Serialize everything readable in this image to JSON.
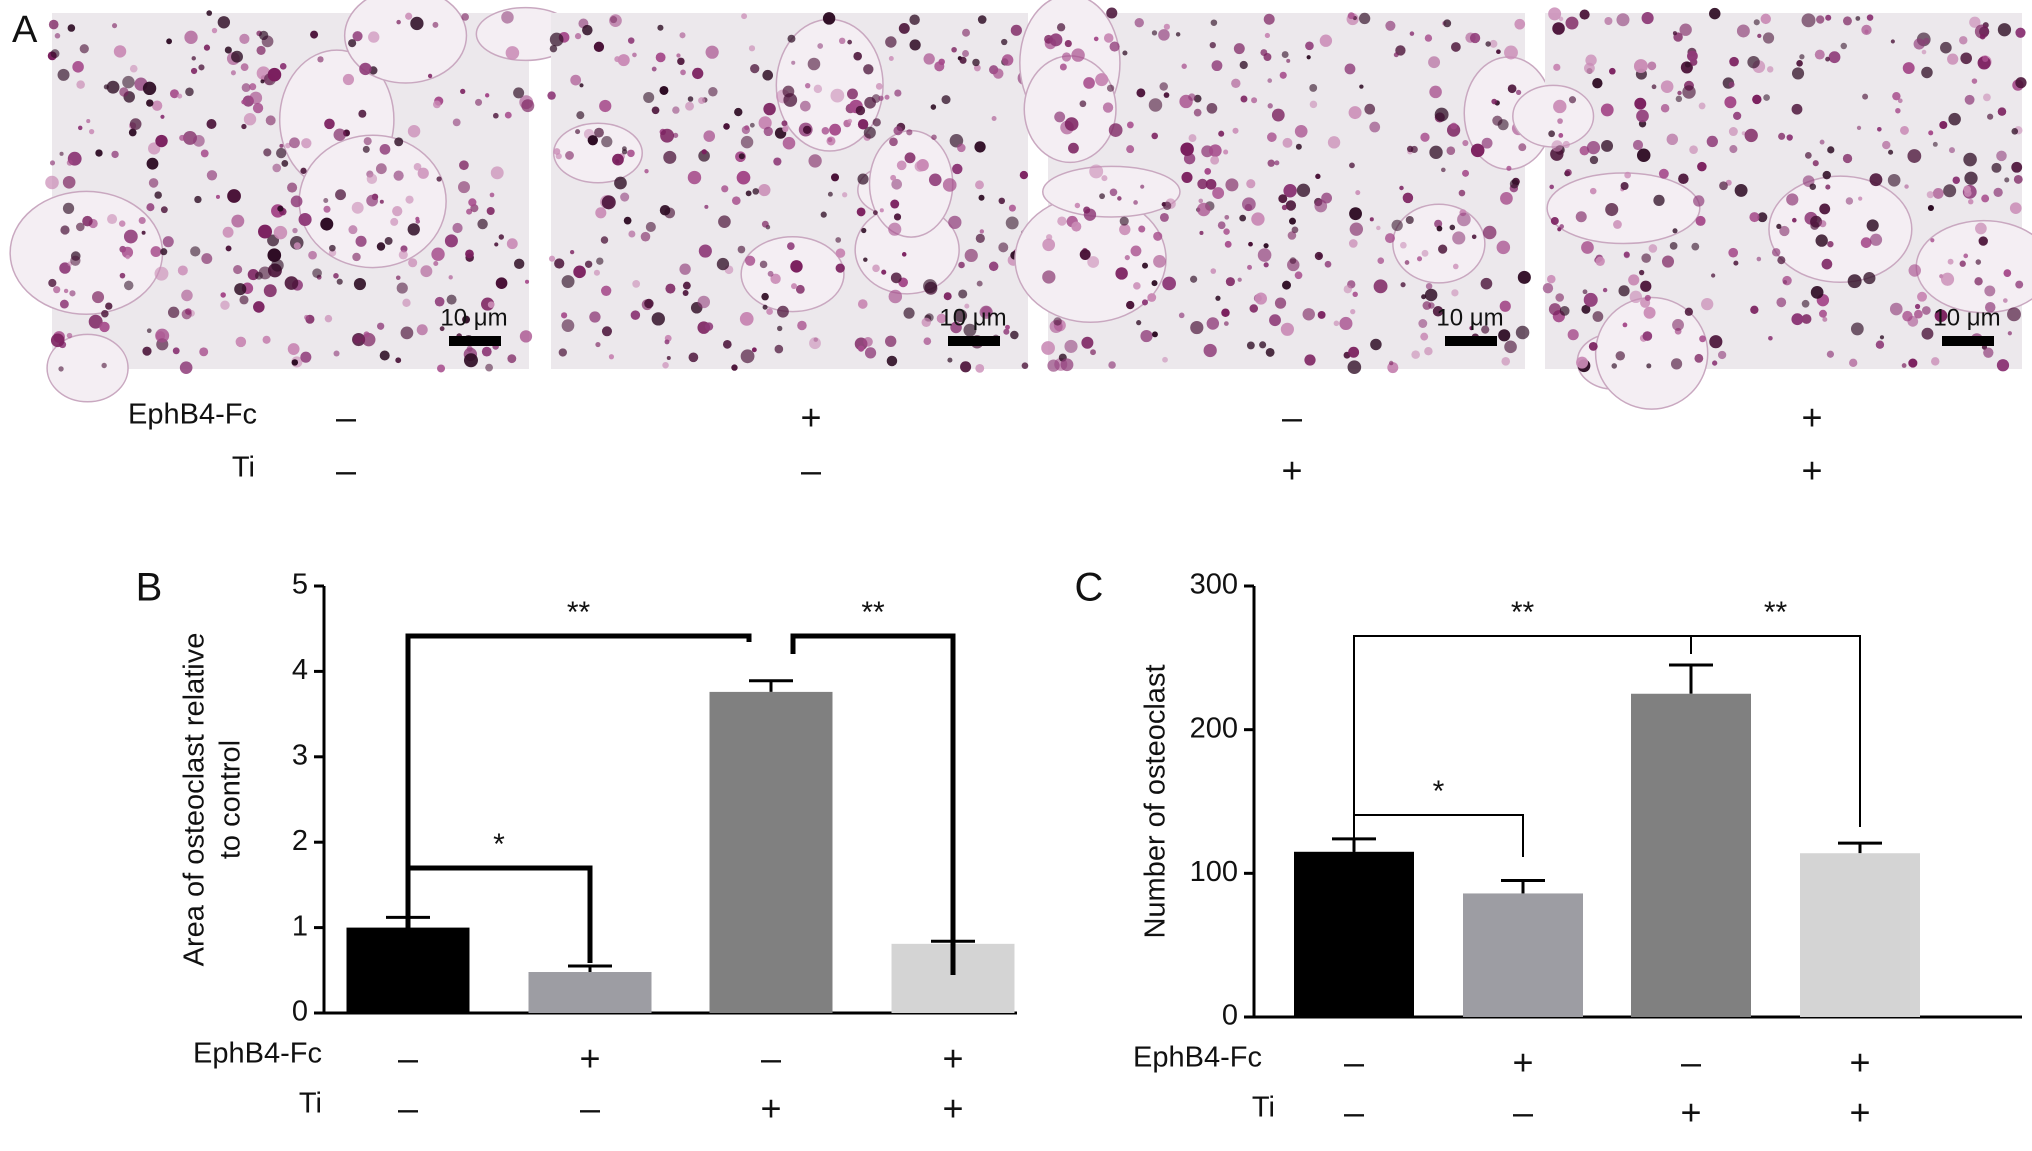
{
  "panel_a": {
    "label": "A",
    "scale_bar": "10 μm",
    "rows": [
      {
        "name": "EphB4-Fc",
        "signs": [
          "–",
          "+",
          "–",
          "+"
        ]
      },
      {
        "name": "Ti",
        "signs": [
          "–",
          "–",
          "+",
          "+"
        ]
      }
    ]
  },
  "chart_data": [
    {
      "type": "bar",
      "panel": "B",
      "ylabel": [
        "Area of osteoclast relative",
        "to control"
      ],
      "values": [
        1.0,
        0.48,
        3.76,
        0.81
      ],
      "errors": [
        0.12,
        0.07,
        0.13,
        0.03
      ],
      "colors": [
        "#000000",
        "#9d9da3",
        "#808080",
        "#d4d4d4"
      ],
      "ylim": [
        0,
        5
      ],
      "yticks": [
        0,
        1,
        2,
        3,
        4,
        5
      ],
      "conditions": [
        {
          "name": "EphB4-Fc",
          "signs": [
            "–",
            "+",
            "–",
            "+"
          ]
        },
        {
          "name": "Ti",
          "signs": [
            "–",
            "–",
            "+",
            "+"
          ]
        }
      ],
      "significance": [
        "**",
        "**",
        "*"
      ],
      "bracket_style": "thick"
    },
    {
      "type": "bar",
      "panel": "C",
      "ylabel": [
        "Number of osteoclast"
      ],
      "values": [
        115,
        86,
        225,
        114
      ],
      "errors": [
        9,
        9,
        20,
        7
      ],
      "colors": [
        "#000000",
        "#9d9da3",
        "#808080",
        "#d4d4d4"
      ],
      "ylim": [
        0,
        300
      ],
      "yticks": [
        0,
        100,
        200,
        300
      ],
      "conditions": [
        {
          "name": "EphB4-Fc",
          "signs": [
            "–",
            "+",
            "–",
            "+"
          ]
        },
        {
          "name": "Ti",
          "signs": [
            "–",
            "–",
            "+",
            "+"
          ]
        }
      ],
      "significance": [
        "**",
        "**",
        "*"
      ],
      "bracket_style": "thin"
    }
  ]
}
